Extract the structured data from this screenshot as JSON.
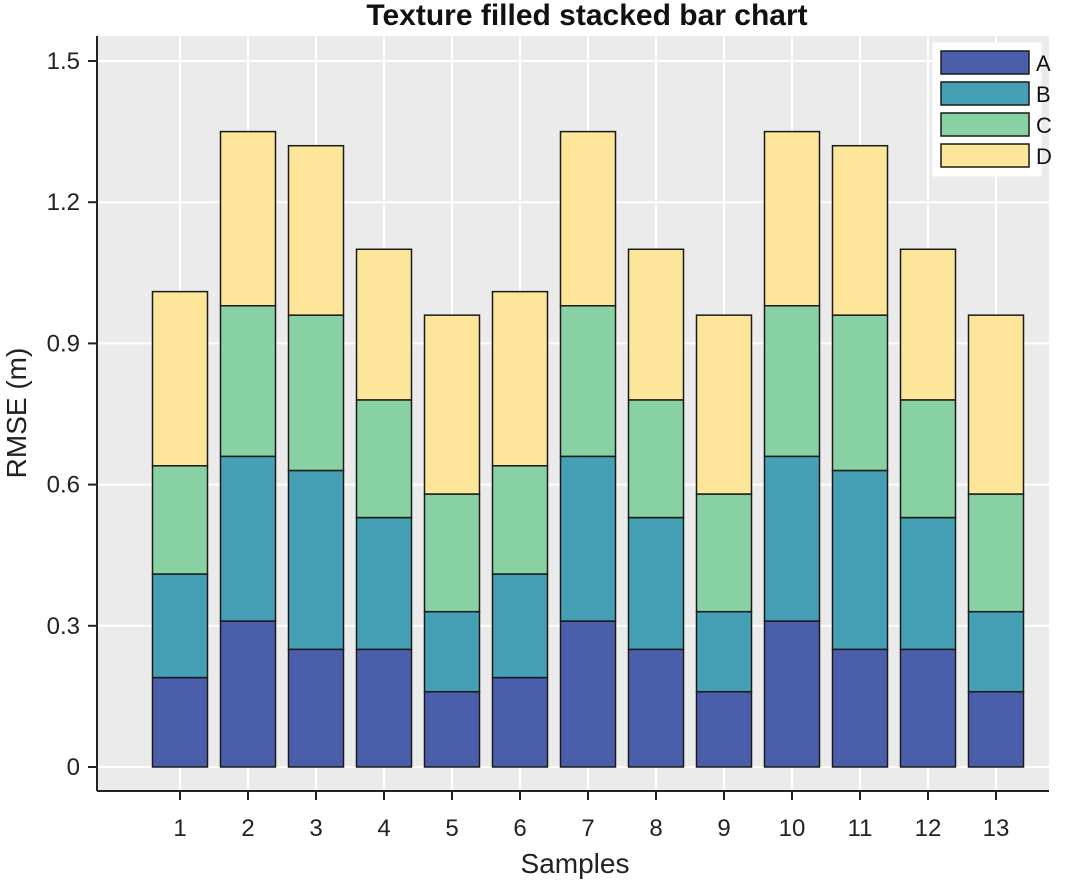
{
  "chart_data": {
    "type": "bar",
    "stacked": true,
    "title": "Texture filled stacked bar chart",
    "xlabel": "Samples",
    "ylabel": "RMSE (m)",
    "ylim": [
      0,
      1.55
    ],
    "yticks": [
      "0",
      "0.3",
      "0.6",
      "0.9",
      "1.2",
      "1.5"
    ],
    "ytick_values": [
      0,
      0.3,
      0.6,
      0.9,
      1.2,
      1.5
    ],
    "grid": true,
    "legend_position": "top-right",
    "categories": [
      "1",
      "2",
      "3",
      "4",
      "5",
      "6",
      "7",
      "8",
      "9",
      "10",
      "11",
      "12",
      "13"
    ],
    "series": [
      {
        "name": "A",
        "color": "#4a5eab",
        "values": [
          0.19,
          0.31,
          0.25,
          0.25,
          0.16,
          0.19,
          0.31,
          0.25,
          0.16,
          0.31,
          0.25,
          0.25,
          0.16
        ]
      },
      {
        "name": "B",
        "color": "#459fb5",
        "values": [
          0.22,
          0.35,
          0.38,
          0.28,
          0.17,
          0.22,
          0.35,
          0.28,
          0.17,
          0.35,
          0.38,
          0.28,
          0.17
        ]
      },
      {
        "name": "C",
        "color": "#87d1a3",
        "values": [
          0.23,
          0.32,
          0.33,
          0.25,
          0.25,
          0.23,
          0.32,
          0.25,
          0.25,
          0.32,
          0.33,
          0.25,
          0.25
        ]
      },
      {
        "name": "D",
        "color": "#fde699",
        "values": [
          0.37,
          0.37,
          0.36,
          0.32,
          0.38,
          0.37,
          0.37,
          0.32,
          0.38,
          0.37,
          0.36,
          0.32,
          0.38
        ]
      }
    ]
  },
  "colors": {
    "plot_background": "#ebebeb",
    "grid": "#ffffff",
    "bar_edge": "#1a1a1a",
    "axis": "#222222"
  }
}
